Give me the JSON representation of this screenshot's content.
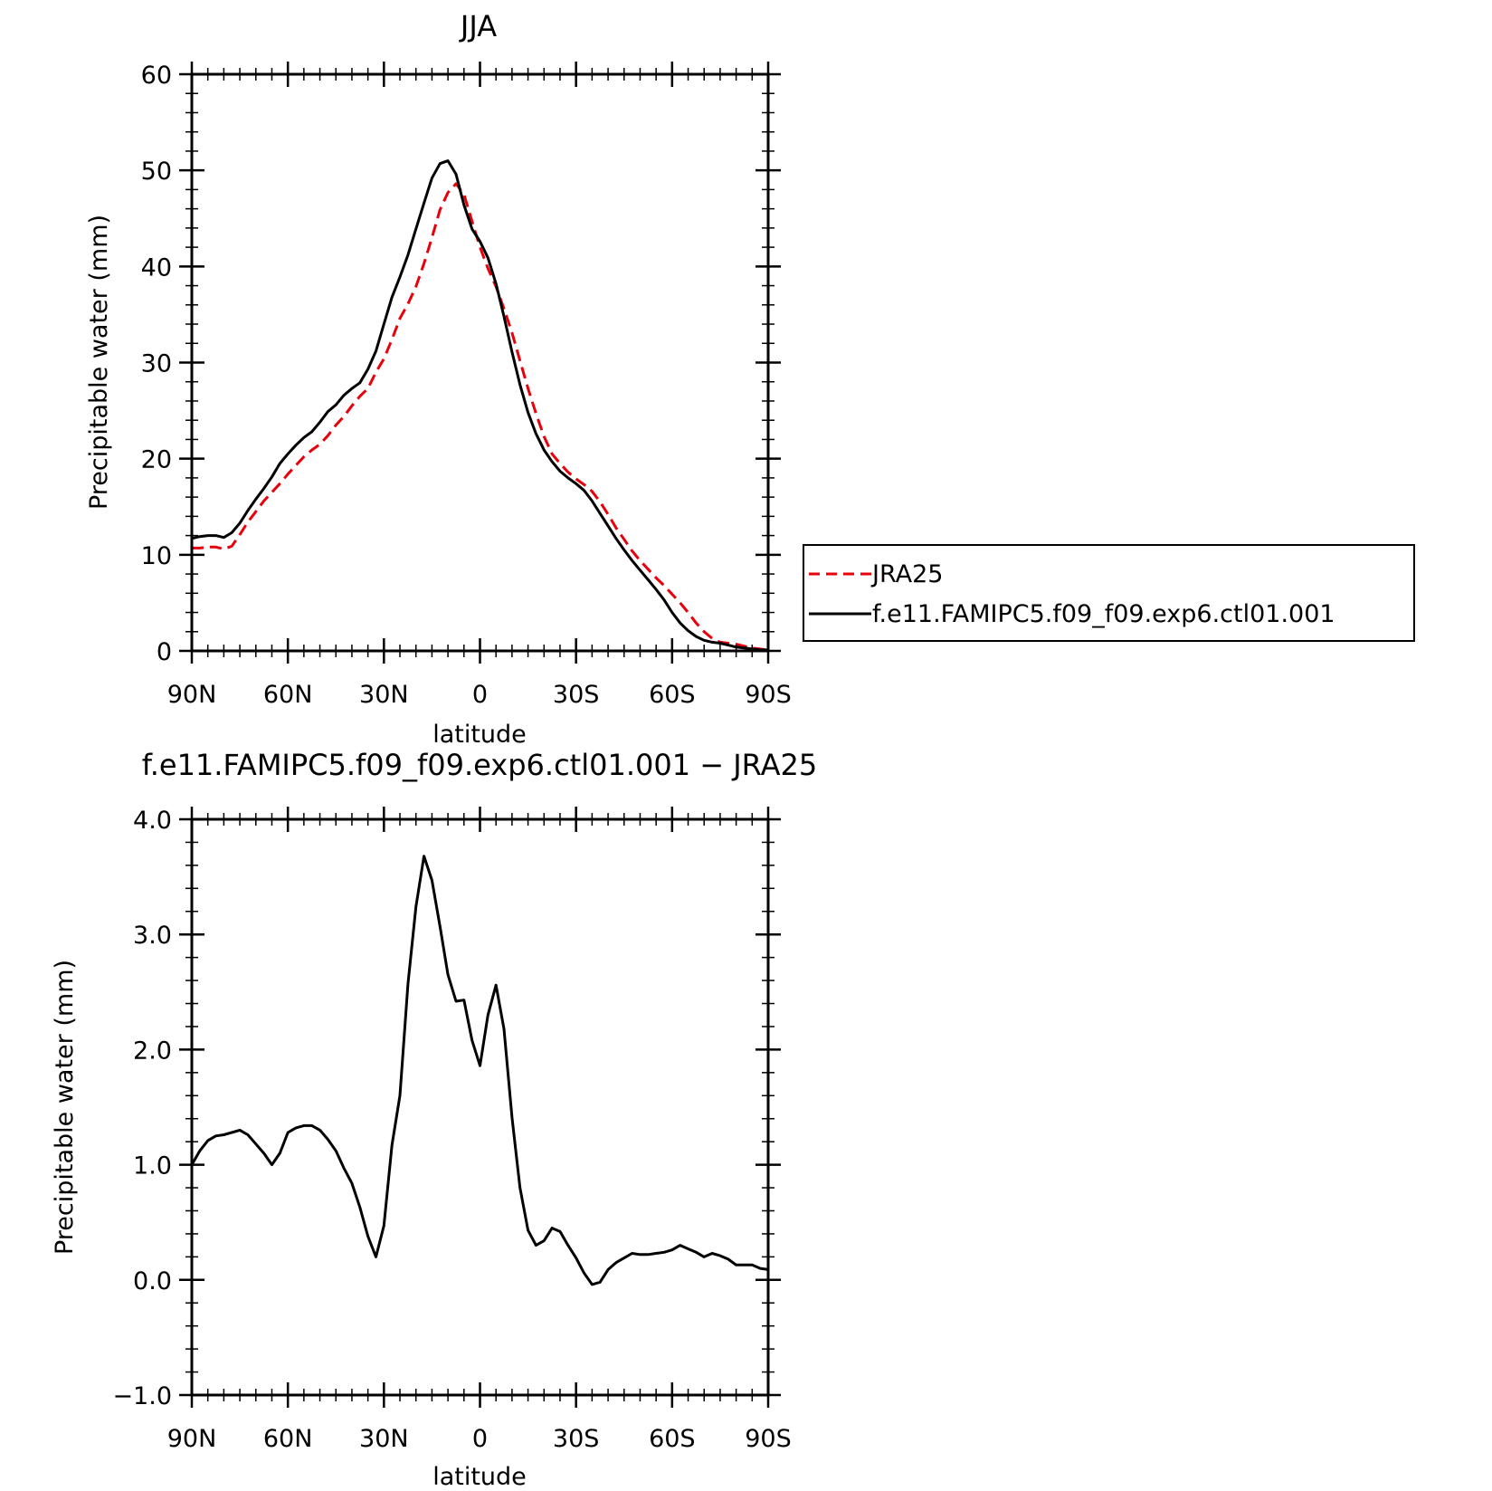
{
  "chart_data": [
    {
      "type": "line",
      "title": "JJA",
      "xlabel": "latitude",
      "ylabel": "Precipitable water (mm)",
      "xlim": [
        90,
        -90
      ],
      "ylim": [
        0,
        60
      ],
      "yticks": [
        "0",
        "10",
        "20",
        "30",
        "40",
        "50",
        "60"
      ],
      "xticks": [
        {
          "value": 90,
          "label": "90N"
        },
        {
          "value": 60,
          "label": "60N"
        },
        {
          "value": 30,
          "label": "30N"
        },
        {
          "value": 0,
          "label": "0"
        },
        {
          "value": -30,
          "label": "30S"
        },
        {
          "value": -60,
          "label": "60S"
        },
        {
          "value": -90,
          "label": "90S"
        }
      ],
      "legend": {
        "position": "right",
        "entries": [
          "JRA25",
          "f.e11.FAMIPC5.f09_f09.exp6.ctl01.001"
        ]
      },
      "series": [
        {
          "name": "JRA25",
          "color": "#e8000b",
          "dash": "dashed",
          "x": [
            90,
            87.5,
            85,
            82.5,
            80,
            77.5,
            75,
            72.5,
            70,
            67.5,
            65,
            62.5,
            60,
            57.5,
            55,
            52.5,
            50,
            47.5,
            45,
            42.5,
            40,
            37.5,
            35,
            32.5,
            30,
            27.5,
            25,
            22.5,
            20,
            17.5,
            15,
            12.5,
            10,
            7.5,
            5,
            2.5,
            0,
            -2.5,
            -5,
            -7.5,
            -10,
            -12.5,
            -15,
            -17.5,
            -20,
            -22.5,
            -25,
            -27.5,
            -30,
            -32.5,
            -35,
            -37.5,
            -40,
            -42.5,
            -45,
            -47.5,
            -50,
            -52.5,
            -55,
            -57.5,
            -60,
            -62.5,
            -65,
            -67.5,
            -70,
            -72.5,
            -75,
            -77.5,
            -80,
            -82.5,
            -85,
            -87.5,
            -90
          ],
          "y": [
            10.7,
            10.7,
            10.8,
            10.8,
            10.6,
            10.9,
            12.1,
            13.4,
            14.5,
            15.6,
            16.5,
            17.4,
            18.4,
            19.3,
            20.2,
            20.9,
            21.5,
            22.4,
            23.5,
            24.4,
            25.5,
            26.5,
            27.3,
            29,
            30.4,
            32.4,
            34.6,
            36.1,
            37.9,
            40.3,
            43,
            45.9,
            47.7,
            48.6,
            47.5,
            44.7,
            42,
            39.8,
            37.9,
            35.6,
            33.1,
            30.2,
            27.3,
            24.7,
            22.3,
            20.5,
            19.5,
            18.6,
            17.9,
            17.3,
            16.6,
            15.5,
            14.2,
            12.8,
            11.6,
            10.4,
            9.4,
            8.5,
            7.6,
            6.8,
            5.9,
            5,
            4,
            2.9,
            2,
            1.3,
            0.9,
            0.8,
            0.7,
            0.5,
            0.3,
            0.2,
            0.1
          ]
        },
        {
          "name": "f.e11.FAMIPC5.f09_f09.exp6.ctl01.001",
          "color": "#000000",
          "dash": "solid",
          "x": [
            90,
            87.5,
            85,
            82.5,
            80,
            77.5,
            75,
            72.5,
            70,
            67.5,
            65,
            62.5,
            60,
            57.5,
            55,
            52.5,
            50,
            47.5,
            45,
            42.5,
            40,
            37.5,
            35,
            32.5,
            30,
            27.5,
            25,
            22.5,
            20,
            17.5,
            15,
            12.5,
            10,
            7.5,
            5,
            2.5,
            0,
            -2.5,
            -5,
            -7.5,
            -10,
            -12.5,
            -15,
            -17.5,
            -20,
            -22.5,
            -25,
            -27.5,
            -30,
            -32.5,
            -35,
            -37.5,
            -40,
            -42.5,
            -45,
            -47.5,
            -50,
            -52.5,
            -55,
            -57.5,
            -60,
            -62.5,
            -65,
            -67.5,
            -70,
            -72.5,
            -75,
            -77.5,
            -80,
            -82.5,
            -85,
            -87.5,
            -90
          ],
          "y": [
            11.7,
            11.9,
            12.0,
            12.0,
            11.8,
            12.3,
            13.3,
            14.6,
            15.8,
            16.9,
            18.1,
            19.5,
            20.5,
            21.4,
            22.2,
            22.8,
            23.8,
            24.9,
            25.6,
            26.6,
            27.3,
            27.9,
            29.3,
            31.2,
            34.0,
            36.8,
            38.9,
            41.2,
            43.9,
            46.6,
            49.2,
            50.7,
            51.0,
            49.6,
            46.4,
            43.9,
            42.6,
            40.9,
            38.2,
            34.8,
            31.1,
            27.7,
            24.8,
            22.6,
            20.9,
            19.7,
            18.7,
            18.0,
            17.4,
            16.7,
            15.6,
            14.3,
            13.0,
            11.7,
            10.5,
            9.4,
            8.4,
            7.4,
            6.4,
            5.3,
            4.0,
            2.9,
            2.1,
            1.5,
            1.1,
            0.9,
            0.8,
            0.6,
            0.4,
            0.3,
            0.2,
            0.1,
            0.1
          ]
        }
      ]
    },
    {
      "type": "line",
      "title": "f.e11.FAMIPC5.f09_f09.exp6.ctl01.001 − JRA25",
      "xlabel": "latitude",
      "ylabel": "Precipitable water (mm)",
      "xlim": [
        90,
        -90
      ],
      "ylim": [
        -1,
        4
      ],
      "yticks": [
        "−1.0",
        "0.0",
        "1.0",
        "2.0",
        "3.0",
        "4.0"
      ],
      "xticks": [
        {
          "value": 90,
          "label": "90N"
        },
        {
          "value": 60,
          "label": "60N"
        },
        {
          "value": 30,
          "label": "30N"
        },
        {
          "value": 0,
          "label": "0"
        },
        {
          "value": -30,
          "label": "30S"
        },
        {
          "value": -60,
          "label": "60S"
        },
        {
          "value": -90,
          "label": "90S"
        }
      ],
      "series": [
        {
          "color": "#000000",
          "dash": "solid",
          "x": [
            90,
            87.5,
            85,
            82.5,
            80,
            77.5,
            75,
            72.5,
            70,
            67.5,
            65,
            62.5,
            60,
            57.5,
            55,
            52.5,
            50,
            47.5,
            45,
            42.5,
            40,
            37.5,
            35,
            32.5,
            30,
            27.5,
            25,
            22.5,
            20,
            17.5,
            15,
            12.5,
            10,
            7.5,
            5,
            2.5,
            0,
            -2.5,
            -5,
            -7.5,
            -10,
            -12.5,
            -15,
            -17.5,
            -20,
            -22.5,
            -25,
            -27.5,
            -30,
            -32.5,
            -35,
            -37.5,
            -40,
            -42.5,
            -45,
            -47.5,
            -50,
            -52.5,
            -55,
            -57.5,
            -60,
            -62.5,
            -65,
            -67.5,
            -70,
            -72.5,
            -75,
            -77.5,
            -80,
            -82.5,
            -85,
            -87.5,
            -90
          ],
          "y": [
            1.0,
            1.12,
            1.21,
            1.25,
            1.26,
            1.28,
            1.3,
            1.26,
            1.18,
            1.1,
            1.0,
            1.1,
            1.28,
            1.32,
            1.34,
            1.34,
            1.3,
            1.22,
            1.12,
            0.97,
            0.84,
            0.63,
            0.38,
            0.2,
            0.47,
            1.17,
            1.6,
            2.57,
            3.24,
            3.68,
            3.47,
            3.07,
            2.65,
            2.42,
            2.43,
            2.08,
            1.86,
            2.3,
            2.56,
            2.18,
            1.41,
            0.8,
            0.43,
            0.3,
            0.34,
            0.45,
            0.42,
            0.3,
            0.19,
            0.06,
            -0.04,
            -0.02,
            0.09,
            0.15,
            0.19,
            0.23,
            0.22,
            0.22,
            0.23,
            0.24,
            0.26,
            0.3,
            0.27,
            0.24,
            0.2,
            0.23,
            0.21,
            0.18,
            0.13,
            0.13,
            0.13,
            0.1,
            0.09
          ]
        }
      ]
    }
  ]
}
